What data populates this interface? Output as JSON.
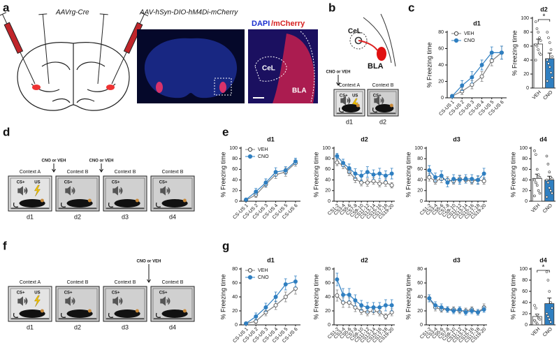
{
  "panel_labels": [
    "a",
    "b",
    "c",
    "d",
    "e",
    "f",
    "g"
  ],
  "panel_a": {
    "virus_left": "AAVrg-Cre",
    "virus_right": "AAV-hSyn-DIO-hM4Di-mCherry",
    "stain_blue": "DAPI",
    "stain_red": "/mCherry",
    "regions": [
      "CeL",
      "BLA"
    ]
  },
  "panel_b": {
    "regions": [
      "CeL",
      "BLA"
    ],
    "injection": "CNO or VEH",
    "contexts": [
      "Context A",
      "Context B"
    ],
    "cs": "CS+",
    "us": "US",
    "days": [
      "d1",
      "d2"
    ]
  },
  "panel_d": {
    "injections": [
      "CNO or VEH",
      "CNO or VEH"
    ],
    "contexts": [
      "Context A",
      "Context B",
      "Context B",
      "Context B"
    ],
    "cs": [
      "CS+",
      "CS+",
      "CS+",
      "CS+"
    ],
    "us": "US",
    "days": [
      "d1",
      "d2",
      "d3",
      "d4"
    ]
  },
  "panel_f": {
    "injection": "CNO or VEH",
    "contexts": [
      "Context A",
      "Context B",
      "Context B",
      "Context B"
    ],
    "cs": [
      "CS+",
      "CS+",
      "CS+",
      "CS+"
    ],
    "us": "US",
    "days": [
      "d1",
      "d2",
      "d3",
      "d4"
    ]
  },
  "chart_data": [
    {
      "type": "line",
      "title": "d1",
      "ylabel": "% Freezing time",
      "legend": true,
      "categories": [
        "CS-US 1",
        "CS-US 2",
        "CS-US 3",
        "CS-US 4",
        "CS-US 5",
        "CS-US 6"
      ],
      "series": [
        {
          "name": "VEH",
          "color": "#7f7f7f",
          "fill": "#ffffff",
          "values": [
            2,
            8,
            16,
            26,
            45,
            55
          ],
          "errors": [
            2,
            4,
            5,
            6,
            6,
            8
          ]
        },
        {
          "name": "CNO",
          "color": "#2f7fc1",
          "fill": "#2f7fc1",
          "values": [
            2,
            15,
            25,
            40,
            55,
            55
          ],
          "errors": [
            2,
            6,
            7,
            6,
            7,
            8
          ]
        }
      ],
      "ylim": [
        0,
        80
      ],
      "yticks": [
        0,
        20,
        40,
        60,
        80
      ]
    },
    {
      "type": "bar",
      "title": "d2",
      "ylabel": "% Freezing time",
      "categories": [
        "VEH",
        "CNO"
      ],
      "values": [
        63,
        42
      ],
      "errors": [
        7,
        8
      ],
      "colors": [
        "#ffffff",
        "#2f7fc1"
      ],
      "points": [
        [
          95,
          85,
          80,
          72,
          68,
          62,
          60,
          55,
          50,
          48,
          40
        ],
        [
          80,
          72,
          65,
          55,
          45,
          40,
          35,
          30,
          22,
          15,
          10
        ]
      ],
      "significance": "*",
      "ylim": [
        0,
        100
      ],
      "yticks": [
        0,
        20,
        40,
        60,
        80,
        100
      ]
    },
    {
      "type": "line",
      "title": "d1",
      "ylabel": "% Freezing time",
      "legend": true,
      "categories": [
        "CS-US 1",
        "CS-US 2",
        "CS-US 3",
        "CS-US 4",
        "CS-US 5",
        "CS-US 6"
      ],
      "series": [
        {
          "name": "VEH",
          "color": "#7f7f7f",
          "fill": "#ffffff",
          "values": [
            2,
            12,
            32,
            50,
            55,
            72
          ],
          "errors": [
            2,
            5,
            6,
            7,
            8,
            6
          ]
        },
        {
          "name": "CNO",
          "color": "#2f7fc1",
          "fill": "#2f7fc1",
          "values": [
            3,
            18,
            35,
            55,
            58,
            75
          ],
          "errors": [
            2,
            6,
            7,
            8,
            7,
            6
          ]
        }
      ],
      "ylim": [
        0,
        100
      ],
      "yticks": [
        0,
        20,
        40,
        60,
        80,
        100
      ]
    },
    {
      "type": "line",
      "title": "d2",
      "ylabel": "% Freezing time",
      "categories": [
        "CS1-2",
        "CS3-4",
        "CS5-6",
        "CS7-8",
        "CS9-10",
        "CS11-12",
        "CS13-14",
        "CS15-16",
        "CS17-18",
        "CS19-20"
      ],
      "series": [
        {
          "color": "#7f7f7f",
          "fill": "#ffffff",
          "values": [
            73,
            68,
            55,
            42,
            35,
            35,
            38,
            33,
            35,
            30
          ],
          "errors": [
            6,
            7,
            7,
            7,
            6,
            7,
            6,
            6,
            7,
            5
          ]
        },
        {
          "color": "#2f7fc1",
          "fill": "#2f7fc1",
          "values": [
            85,
            72,
            62,
            52,
            48,
            55,
            50,
            52,
            48,
            52
          ],
          "errors": [
            5,
            7,
            8,
            9,
            9,
            10,
            9,
            10,
            9,
            10
          ]
        }
      ],
      "ylim": [
        0,
        100
      ],
      "yticks": [
        0,
        20,
        40,
        60,
        80,
        100
      ]
    },
    {
      "type": "line",
      "title": "d3",
      "ylabel": "% Freezing time",
      "categories": [
        "CS1-2",
        "CS3-4",
        "CS5-6",
        "CS7-8",
        "CS9-10",
        "CS11-12",
        "CS13-14",
        "CS15-16",
        "CS17-18",
        "CS19-20"
      ],
      "series": [
        {
          "color": "#7f7f7f",
          "fill": "#ffffff",
          "values": [
            45,
            38,
            42,
            40,
            38,
            42,
            40,
            38,
            40,
            38
          ],
          "errors": [
            7,
            6,
            7,
            6,
            6,
            7,
            6,
            6,
            7,
            6
          ]
        },
        {
          "color": "#2f7fc1",
          "fill": "#2f7fc1",
          "values": [
            58,
            45,
            48,
            35,
            42,
            40,
            42,
            42,
            40,
            52
          ],
          "errors": [
            9,
            8,
            9,
            8,
            8,
            8,
            8,
            8,
            8,
            10
          ]
        }
      ],
      "ylim": [
        0,
        100
      ],
      "yticks": [
        0,
        20,
        40,
        60,
        80,
        100
      ]
    },
    {
      "type": "bar",
      "title": "d4",
      "ylabel": "% Freezing time",
      "categories": [
        "VEH",
        "CNO"
      ],
      "values": [
        43,
        40
      ],
      "errors": [
        8,
        7
      ],
      "colors": [
        "#ffffff",
        "#2f7fc1"
      ],
      "points": [
        [
          95,
          88,
          60,
          50,
          45,
          40,
          35,
          30,
          20,
          15,
          10
        ],
        [
          85,
          70,
          55,
          45,
          42,
          40,
          35,
          25,
          20,
          15,
          8
        ]
      ],
      "ylim": [
        0,
        100
      ],
      "yticks": [
        0,
        20,
        40,
        60,
        80,
        100
      ]
    },
    {
      "type": "line",
      "title": "d1",
      "ylabel": "% Freezing time",
      "legend": true,
      "categories": [
        "CS-US 1",
        "CS-US 2",
        "CS-US 3",
        "CS-US 4",
        "CS-US 5",
        "CS-US 6"
      ],
      "series": [
        {
          "name": "VEH",
          "color": "#7f7f7f",
          "fill": "#ffffff",
          "values": [
            2,
            5,
            18,
            28,
            40,
            52
          ],
          "errors": [
            2,
            3,
            5,
            6,
            7,
            8
          ]
        },
        {
          "name": "CNO",
          "color": "#2f7fc1",
          "fill": "#2f7fc1",
          "values": [
            2,
            12,
            25,
            40,
            58,
            62
          ],
          "errors": [
            2,
            5,
            6,
            7,
            8,
            8
          ]
        }
      ],
      "ylim": [
        0,
        80
      ],
      "yticks": [
        0,
        20,
        40,
        60,
        80
      ]
    },
    {
      "type": "line",
      "title": "d2",
      "ylabel": "% Freezing time",
      "categories": [
        "CS1-2",
        "CS3-4",
        "CS5-6",
        "CS7-8",
        "CS9-10",
        "CS11-12",
        "CS13-14",
        "CS15-16",
        "CS17-18",
        "CS19-20"
      ],
      "series": [
        {
          "color": "#7f7f7f",
          "fill": "#ffffff",
          "values": [
            42,
            32,
            32,
            25,
            20,
            18,
            20,
            18,
            12,
            18
          ],
          "errors": [
            8,
            7,
            7,
            6,
            5,
            5,
            5,
            5,
            4,
            5
          ]
        },
        {
          "color": "#2f7fc1",
          "fill": "#2f7fc1",
          "values": [
            65,
            43,
            43,
            35,
            28,
            25,
            25,
            25,
            28,
            28
          ],
          "errors": [
            9,
            9,
            9,
            8,
            7,
            7,
            7,
            7,
            8,
            8
          ]
        }
      ],
      "ylim": [
        0,
        80
      ],
      "yticks": [
        0,
        20,
        40,
        60,
        80
      ]
    },
    {
      "type": "line",
      "title": "d3",
      "ylabel": "% Freezing time",
      "categories": [
        "CS1-2",
        "CS3-4",
        "CS5-6",
        "CS7-8",
        "CS9-10",
        "CS11-12",
        "CS13-14",
        "CS15-16",
        "CS17-18",
        "CS19-20"
      ],
      "series": [
        {
          "color": "#7f7f7f",
          "fill": "#ffffff",
          "values": [
            38,
            25,
            22,
            22,
            22,
            20,
            20,
            22,
            18,
            25
          ],
          "errors": [
            5,
            5,
            4,
            4,
            4,
            4,
            4,
            4,
            4,
            5
          ]
        },
        {
          "color": "#2f7fc1",
          "fill": "#2f7fc1",
          "values": [
            38,
            28,
            25,
            22,
            20,
            22,
            18,
            20,
            18,
            22
          ],
          "errors": [
            5,
            5,
            5,
            4,
            4,
            4,
            4,
            4,
            4,
            4
          ]
        }
      ],
      "ylim": [
        0,
        80
      ],
      "yticks": [
        0,
        20,
        40,
        60,
        80
      ]
    },
    {
      "type": "bar",
      "title": "d4",
      "ylabel": "% Freezing time",
      "categories": [
        "VEH",
        "CNO"
      ],
      "values": [
        15,
        38
      ],
      "errors": [
        4,
        10
      ],
      "colors": [
        "#ffffff",
        "#2f7fc1"
      ],
      "points": [
        [
          35,
          30,
          18,
          12,
          10,
          8,
          5,
          2
        ],
        [
          95,
          80,
          60,
          40,
          30,
          20,
          15,
          10,
          5
        ]
      ],
      "significance": "*",
      "ylim": [
        0,
        100
      ],
      "yticks": [
        0,
        20,
        40,
        60,
        80,
        100
      ]
    }
  ]
}
